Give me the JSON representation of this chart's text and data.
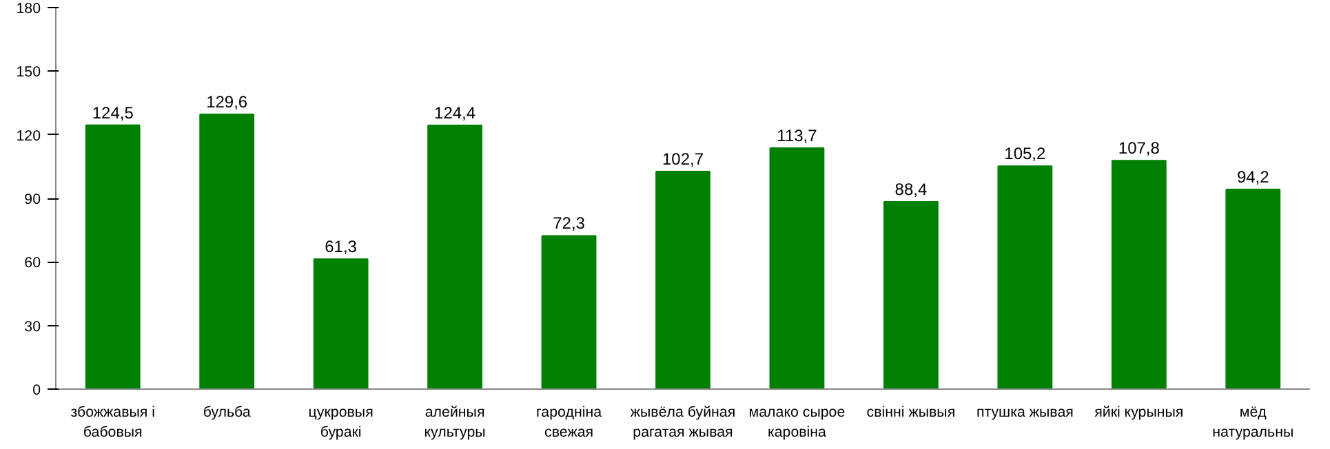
{
  "chart_data": {
    "type": "bar",
    "categories": [
      "збожжавыя і бабовыя",
      "бульба",
      "цукровыя буракі",
      "алейныя культуры",
      "гародніна свежая",
      "жывёла буйная рагатая жывая",
      "малако сырое каровіна",
      "свінні жывыя",
      "птушка жывая",
      "яйкі курыныя",
      "мёд натуральны"
    ],
    "values": [
      124.5,
      129.6,
      61.3,
      124.4,
      72.3,
      102.7,
      113.7,
      88.4,
      105.2,
      107.8,
      94.2
    ],
    "value_labels": [
      "124,5",
      "129,6",
      "61,3",
      "124,4",
      "72,3",
      "102,7",
      "113,7",
      "88,4",
      "105,2",
      "107,8",
      "94,2"
    ],
    "color": "#008000",
    "ylim": [
      0,
      180
    ],
    "yticks": [
      0,
      30,
      60,
      90,
      120,
      150,
      180
    ],
    "grid": false
  }
}
